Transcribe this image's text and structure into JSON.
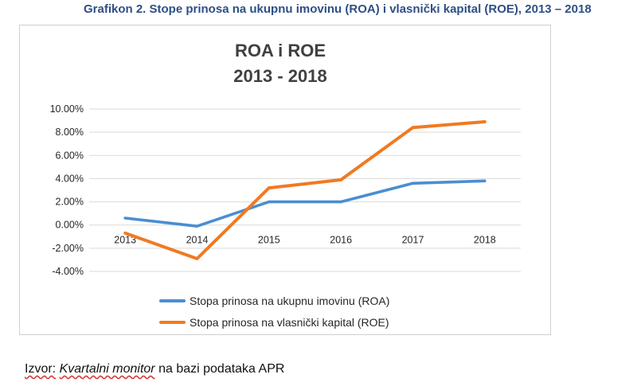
{
  "caption": "Grafikon 2. Stope prinosa na ukupnu imovinu (ROA) i vlasnički kapital (ROE), 2013 – 2018",
  "source": {
    "prefix": "Izvor:",
    "italic": "Kvartalni monitor",
    "suffix": "na bazi podataka APR"
  },
  "colors": {
    "roa": "#4a8ed0",
    "roe": "#f07a22",
    "grid": "#d9d9d9",
    "caption": "#2e4f86"
  },
  "chart_data": {
    "type": "line",
    "title_lines": [
      "ROA i ROE",
      "2013 - 2018"
    ],
    "categories": [
      "2013",
      "2014",
      "2015",
      "2016",
      "2017",
      "2018"
    ],
    "series": [
      {
        "name": "Stopa prinosa na ukupnu imovinu (ROA)",
        "key": "roa",
        "values": [
          0.6,
          -0.1,
          2.0,
          2.0,
          3.6,
          3.8
        ]
      },
      {
        "name": "Stopa prinosa na vlasnički kapital (ROE)",
        "key": "roe",
        "values": [
          -0.7,
          -2.9,
          3.2,
          3.9,
          8.4,
          8.9
        ]
      }
    ],
    "y_ticks": [
      "10.00%",
      "8.00%",
      "6.00%",
      "4.00%",
      "2.00%",
      "0.00%",
      "-2.00%",
      "-4.00%"
    ],
    "ylim": [
      -4,
      10
    ],
    "y_step": 2,
    "grid": true,
    "legend_position": "bottom",
    "xlabel": "",
    "ylabel": ""
  }
}
